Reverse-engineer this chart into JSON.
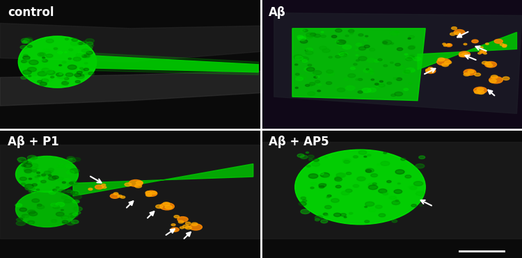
{
  "figsize": [
    7.5,
    3.71
  ],
  "dpi": 100,
  "labels": [
    "control",
    "Aβ",
    "Aβ + P1",
    "Aβ + AP5"
  ],
  "label_color": "white",
  "label_fontsize": 12,
  "divider_color": "white",
  "divider_linewidth": 2,
  "scale_bar_color": "white",
  "scale_bar_linewidth": 2,
  "bg_color": "#000000",
  "green_bright": "#00ee00",
  "green_mid": "#00cc00",
  "orange_spot": "#ff8800",
  "seed": 42
}
